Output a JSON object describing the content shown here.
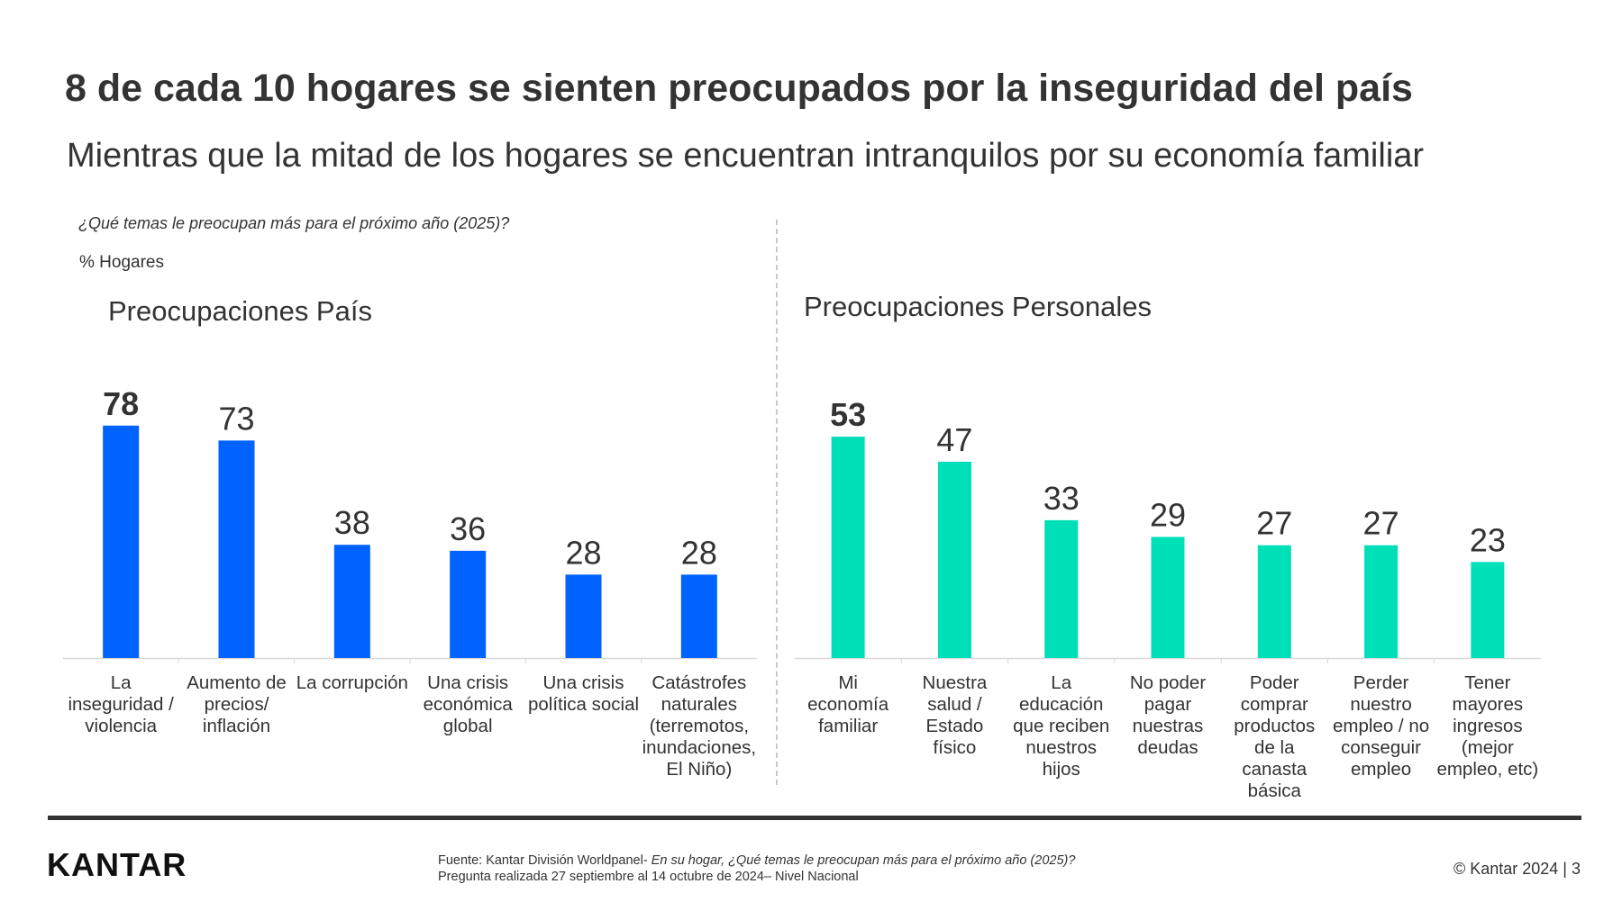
{
  "header": {
    "title": "8 de cada 10 hogares se sienten preocupados por la inseguridad del país",
    "subtitle": "Mientras que la mitad de los hogares se encuentran intranquilos por su economía familiar",
    "question": "¿Qué temas le preocupan más para el próximo año (2025)?",
    "unit": "% Hogares"
  },
  "chart_data": [
    {
      "type": "bar",
      "title": "Preocupaciones País",
      "categories": [
        [
          "La",
          "inseguridad /",
          "violencia"
        ],
        [
          "Aumento de",
          "precios/",
          "inflación"
        ],
        [
          "La corrupción"
        ],
        [
          "Una crisis",
          "económica",
          "global"
        ],
        [
          "Una crisis",
          "política social"
        ],
        [
          "Catástrofes",
          "naturales",
          "(terremotos,",
          "inundaciones,",
          "El Niño)"
        ]
      ],
      "values": [
        78,
        73,
        38,
        36,
        28,
        28
      ],
      "highlight_index": 0,
      "color": "#0062FF",
      "ylim": [
        0,
        100
      ],
      "grid": false,
      "legend": "none"
    },
    {
      "type": "bar",
      "title": "Preocupaciones Personales",
      "categories": [
        [
          "Mi",
          "economía",
          "familiar"
        ],
        [
          "Nuestra",
          "salud /",
          "Estado",
          "físico"
        ],
        [
          "La",
          "educación",
          "que reciben",
          "nuestros",
          "hijos"
        ],
        [
          "No poder",
          "pagar",
          "nuestras",
          "deudas"
        ],
        [
          "Poder",
          "comprar",
          "productos",
          "de la",
          "canasta",
          "básica"
        ],
        [
          "Perder",
          "nuestro",
          "empleo / no",
          "conseguir",
          "empleo"
        ],
        [
          "Tener",
          "mayores",
          "ingresos",
          "(mejor",
          "empleo, etc)"
        ]
      ],
      "values": [
        53,
        47,
        33,
        29,
        27,
        27,
        23
      ],
      "highlight_index": 0,
      "color": "#00E0B8",
      "ylim": [
        0,
        100
      ],
      "grid": false,
      "legend": "none"
    }
  ],
  "footer": {
    "logo": "KANTAR",
    "source_prefix": "Fuente: Kantar División Worldpanel- ",
    "source_italic": "En su hogar, ¿Qué temas le preocupan más para el próximo año (2025)?",
    "source_line2": "Pregunta realizada 27 septiembre al 14 octubre de 2024– Nivel Nacional",
    "page": "© Kantar 2024 | 3"
  }
}
